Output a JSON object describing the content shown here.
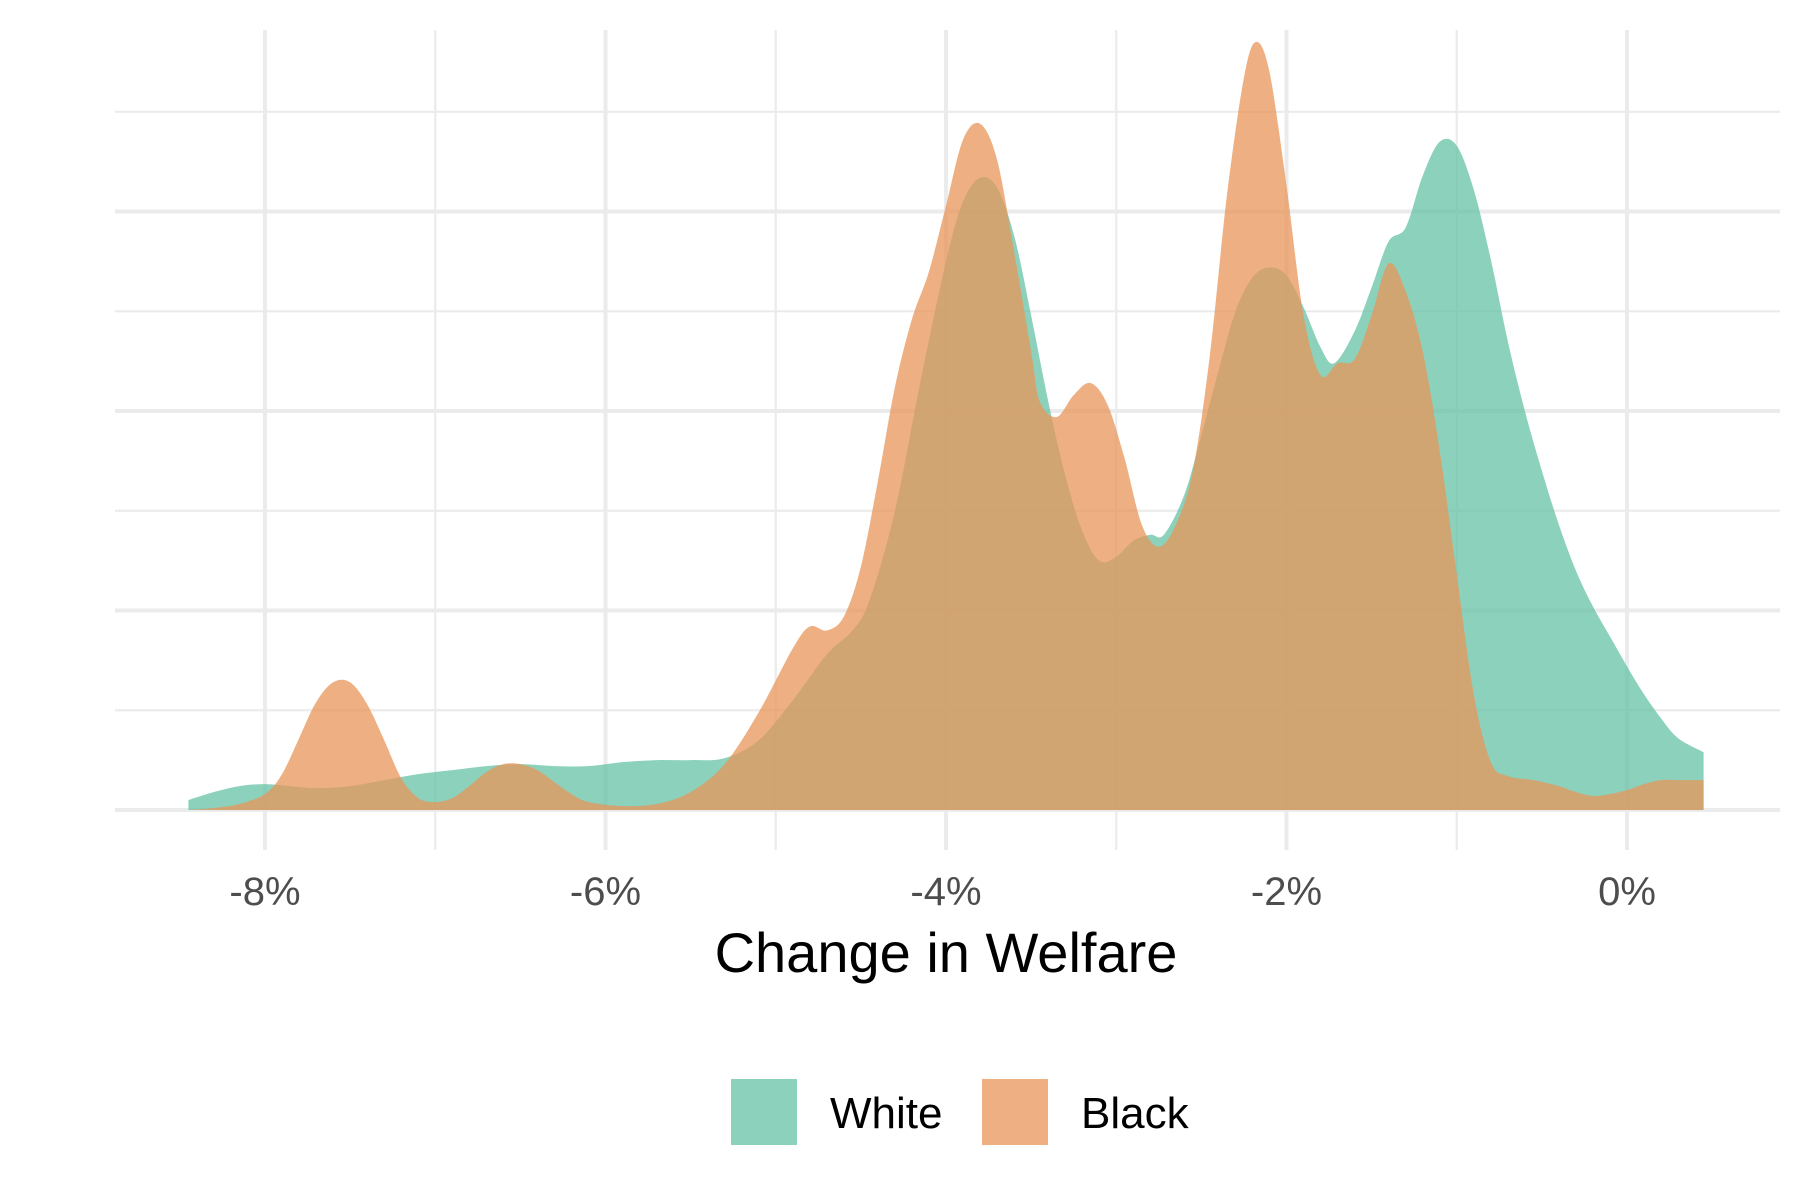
{
  "chart_data": {
    "type": "area",
    "subtype": "density",
    "title": "",
    "xlabel": "Change in Welfare",
    "ylabel": "",
    "x_ticks": [
      {
        "value": -8,
        "label": "-8%"
      },
      {
        "value": -6,
        "label": "-6%"
      },
      {
        "value": -4,
        "label": "-4%"
      },
      {
        "value": -2,
        "label": "-2%"
      },
      {
        "value": 0,
        "label": "0%"
      }
    ],
    "xlim": [
      -8.9,
      0.9
    ],
    "ylim": [
      0,
      0.4
    ],
    "y_tick_labels_shown": false,
    "grid": true,
    "legend": {
      "position": "bottom",
      "direction": "horizontal"
    },
    "series": [
      {
        "name": "White",
        "color": "#66C2A5",
        "opacity": 0.75,
        "points": [
          [
            -8.45,
            0.005
          ],
          [
            -8.3,
            0.009
          ],
          [
            -8.15,
            0.012
          ],
          [
            -8.0,
            0.013
          ],
          [
            -7.85,
            0.012
          ],
          [
            -7.7,
            0.011
          ],
          [
            -7.5,
            0.012
          ],
          [
            -7.3,
            0.015
          ],
          [
            -7.1,
            0.018
          ],
          [
            -6.9,
            0.02
          ],
          [
            -6.7,
            0.022
          ],
          [
            -6.5,
            0.023
          ],
          [
            -6.3,
            0.022
          ],
          [
            -6.1,
            0.022
          ],
          [
            -5.9,
            0.024
          ],
          [
            -5.7,
            0.025
          ],
          [
            -5.5,
            0.025
          ],
          [
            -5.3,
            0.026
          ],
          [
            -5.1,
            0.035
          ],
          [
            -4.9,
            0.055
          ],
          [
            -4.7,
            0.078
          ],
          [
            -4.55,
            0.09
          ],
          [
            -4.45,
            0.105
          ],
          [
            -4.3,
            0.15
          ],
          [
            -4.15,
            0.215
          ],
          [
            -4.0,
            0.275
          ],
          [
            -3.9,
            0.305
          ],
          [
            -3.8,
            0.317
          ],
          [
            -3.7,
            0.312
          ],
          [
            -3.6,
            0.288
          ],
          [
            -3.5,
            0.248
          ],
          [
            -3.4,
            0.205
          ],
          [
            -3.3,
            0.168
          ],
          [
            -3.2,
            0.14
          ],
          [
            -3.1,
            0.125
          ],
          [
            -3.0,
            0.127
          ],
          [
            -2.9,
            0.135
          ],
          [
            -2.8,
            0.138
          ],
          [
            -2.72,
            0.138
          ],
          [
            -2.6,
            0.158
          ],
          [
            -2.5,
            0.188
          ],
          [
            -2.4,
            0.22
          ],
          [
            -2.3,
            0.25
          ],
          [
            -2.2,
            0.267
          ],
          [
            -2.1,
            0.272
          ],
          [
            -2.0,
            0.268
          ],
          [
            -1.9,
            0.252
          ],
          [
            -1.8,
            0.232
          ],
          [
            -1.72,
            0.224
          ],
          [
            -1.6,
            0.24
          ],
          [
            -1.5,
            0.262
          ],
          [
            -1.4,
            0.285
          ],
          [
            -1.3,
            0.292
          ],
          [
            -1.2,
            0.318
          ],
          [
            -1.1,
            0.335
          ],
          [
            -1.0,
            0.333
          ],
          [
            -0.9,
            0.311
          ],
          [
            -0.8,
            0.276
          ],
          [
            -0.7,
            0.235
          ],
          [
            -0.6,
            0.2
          ],
          [
            -0.5,
            0.17
          ],
          [
            -0.4,
            0.143
          ],
          [
            -0.3,
            0.12
          ],
          [
            -0.2,
            0.102
          ],
          [
            -0.1,
            0.087
          ],
          [
            0.0,
            0.072
          ],
          [
            0.1,
            0.058
          ],
          [
            0.2,
            0.046
          ],
          [
            0.3,
            0.036
          ],
          [
            0.45,
            0.029
          ]
        ]
      },
      {
        "name": "Black",
        "color": "#E8955A",
        "opacity": 0.75,
        "points": [
          [
            -8.45,
            0.0
          ],
          [
            -8.3,
            0.001
          ],
          [
            -8.15,
            0.003
          ],
          [
            -8.0,
            0.008
          ],
          [
            -7.9,
            0.018
          ],
          [
            -7.8,
            0.036
          ],
          [
            -7.7,
            0.054
          ],
          [
            -7.6,
            0.064
          ],
          [
            -7.5,
            0.064
          ],
          [
            -7.4,
            0.053
          ],
          [
            -7.3,
            0.035
          ],
          [
            -7.2,
            0.016
          ],
          [
            -7.1,
            0.006
          ],
          [
            -7.0,
            0.004
          ],
          [
            -6.9,
            0.006
          ],
          [
            -6.8,
            0.012
          ],
          [
            -6.7,
            0.019
          ],
          [
            -6.6,
            0.023
          ],
          [
            -6.5,
            0.023
          ],
          [
            -6.4,
            0.02
          ],
          [
            -6.3,
            0.014
          ],
          [
            -6.2,
            0.008
          ],
          [
            -6.1,
            0.004
          ],
          [
            -5.9,
            0.002
          ],
          [
            -5.7,
            0.003
          ],
          [
            -5.5,
            0.009
          ],
          [
            -5.3,
            0.023
          ],
          [
            -5.1,
            0.049
          ],
          [
            -4.9,
            0.081
          ],
          [
            -4.8,
            0.092
          ],
          [
            -4.7,
            0.09
          ],
          [
            -4.6,
            0.097
          ],
          [
            -4.5,
            0.122
          ],
          [
            -4.4,
            0.165
          ],
          [
            -4.3,
            0.212
          ],
          [
            -4.2,
            0.246
          ],
          [
            -4.1,
            0.27
          ],
          [
            -4.0,
            0.303
          ],
          [
            -3.9,
            0.336
          ],
          [
            -3.8,
            0.344
          ],
          [
            -3.7,
            0.326
          ],
          [
            -3.6,
            0.28
          ],
          [
            -3.5,
            0.23
          ],
          [
            -3.45,
            0.205
          ],
          [
            -3.35,
            0.197
          ],
          [
            -3.25,
            0.208
          ],
          [
            -3.15,
            0.214
          ],
          [
            -3.05,
            0.203
          ],
          [
            -2.95,
            0.176
          ],
          [
            -2.85,
            0.143
          ],
          [
            -2.75,
            0.132
          ],
          [
            -2.65,
            0.143
          ],
          [
            -2.55,
            0.17
          ],
          [
            -2.45,
            0.228
          ],
          [
            -2.35,
            0.308
          ],
          [
            -2.25,
            0.367
          ],
          [
            -2.18,
            0.385
          ],
          [
            -2.1,
            0.37
          ],
          [
            -2.0,
            0.313
          ],
          [
            -1.9,
            0.248
          ],
          [
            -1.8,
            0.218
          ],
          [
            -1.7,
            0.224
          ],
          [
            -1.6,
            0.226
          ],
          [
            -1.5,
            0.248
          ],
          [
            -1.4,
            0.274
          ],
          [
            -1.3,
            0.26
          ],
          [
            -1.2,
            0.23
          ],
          [
            -1.1,
            0.18
          ],
          [
            -1.0,
            0.118
          ],
          [
            -0.9,
            0.058
          ],
          [
            -0.8,
            0.024
          ],
          [
            -0.7,
            0.017
          ],
          [
            -0.55,
            0.015
          ],
          [
            -0.4,
            0.012
          ],
          [
            -0.3,
            0.009
          ],
          [
            -0.2,
            0.007
          ],
          [
            -0.1,
            0.008
          ],
          [
            0.0,
            0.01
          ],
          [
            0.1,
            0.013
          ],
          [
            0.2,
            0.015
          ],
          [
            0.3,
            0.015
          ],
          [
            0.45,
            0.015
          ]
        ]
      }
    ]
  }
}
